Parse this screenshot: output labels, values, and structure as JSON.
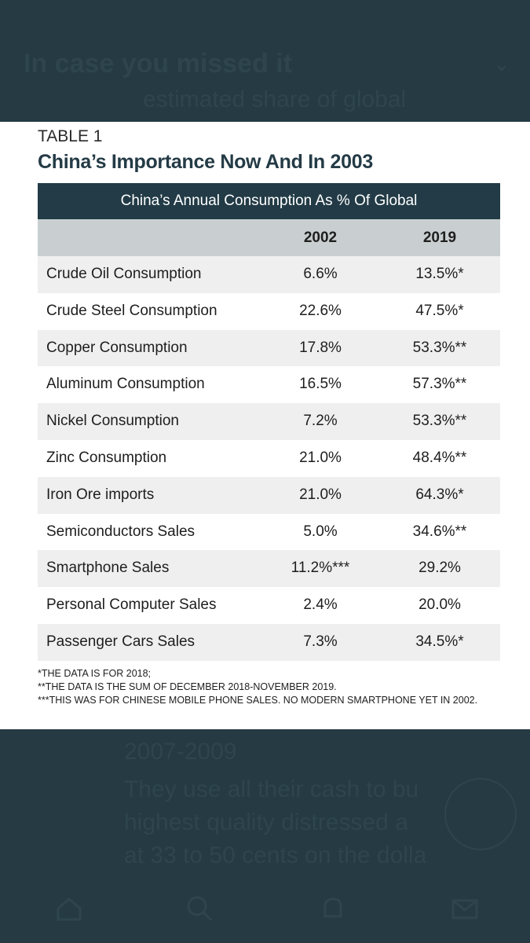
{
  "background": {
    "header_text": "In case you missed it",
    "chevron": "⌄",
    "top_partial": "estimated share of global",
    "lines": [
      "2007-2009",
      "They use all their cash to bu",
      "highest quality distressed a",
      "at 33 to 50 cents on the dolla"
    ],
    "tab_icons": [
      "home-icon",
      "search-icon",
      "bell-icon",
      "mail-icon"
    ],
    "colors": {
      "bg": "#253a42",
      "ghost": "#2f454d"
    }
  },
  "table": {
    "label": "TABLE 1",
    "title": "China’s Importance Now And In 2003",
    "caption": "China’s Annual Consumption As % Of Global",
    "colors": {
      "header_bar": "#223b46",
      "column_header": "#c9cfd0",
      "shade": "#efefef"
    }
  },
  "chart_data": {
    "type": "table",
    "title": "China’s Importance Now And In 2003",
    "subtitle": "China’s Annual Consumption As % Of Global",
    "columns": [
      "2002",
      "2019"
    ],
    "rows": [
      {
        "label": "Crude Oil Consumption",
        "v2002": "6.6%",
        "v2019": "13.5%*"
      },
      {
        "label": "Crude Steel Consumption",
        "v2002": "22.6%",
        "v2019": "47.5%*"
      },
      {
        "label": "Copper Consumption",
        "v2002": "17.8%",
        "v2019": "53.3%**"
      },
      {
        "label": "Aluminum Consumption",
        "v2002": "16.5%",
        "v2019": "57.3%**"
      },
      {
        "label": "Nickel Consumption",
        "v2002": "7.2%",
        "v2019": "53.3%**"
      },
      {
        "label": "Zinc Consumption",
        "v2002": "21.0%",
        "v2019": "48.4%**"
      },
      {
        "label": "Iron Ore imports",
        "v2002": "21.0%",
        "v2019": "64.3%*"
      },
      {
        "label": "Semiconductors Sales",
        "v2002": "5.0%",
        "v2019": "34.6%**"
      },
      {
        "label": "Smartphone Sales",
        "v2002": "11.2%***",
        "v2019": "29.2%"
      },
      {
        "label": "Personal Computer Sales",
        "v2002": "2.4%",
        "v2019": "20.0%"
      },
      {
        "label": "Passenger Cars Sales",
        "v2002": "7.3%",
        "v2019": "34.5%*"
      }
    ],
    "footnotes": [
      "*THE DATA IS FOR 2018;",
      "**THE DATA IS THE SUM OF DECEMBER 2018-NOVEMBER 2019.",
      "***THIS WAS FOR CHINESE MOBILE PHONE SALES. NO MODERN SMARTPHONE YET IN 2002."
    ]
  }
}
